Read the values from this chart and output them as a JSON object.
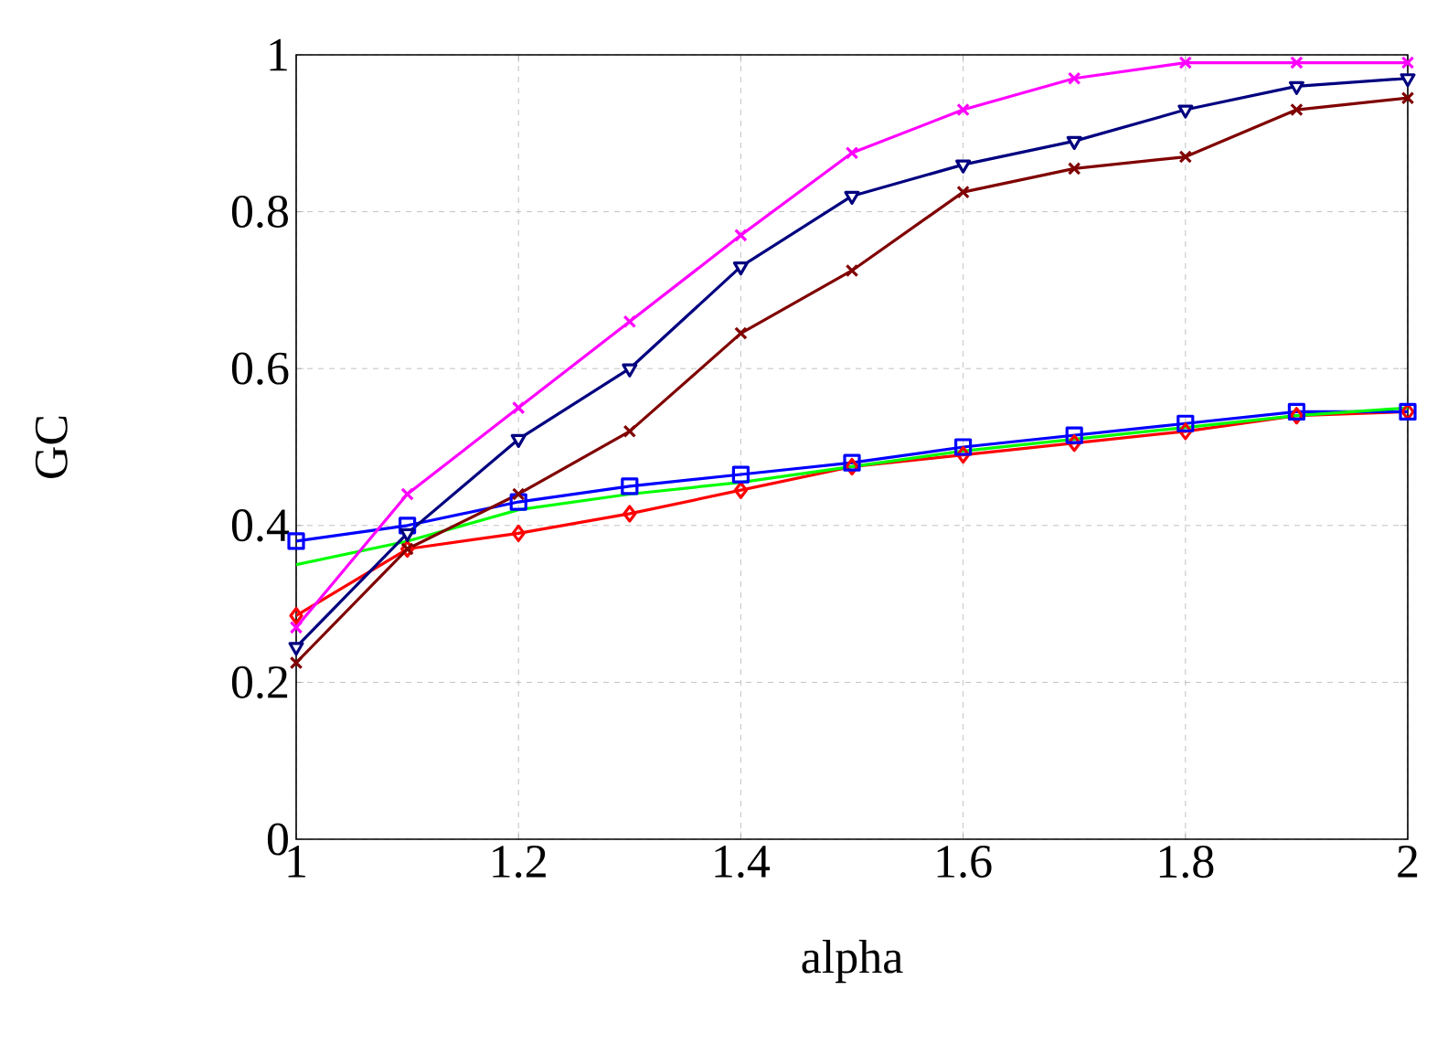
{
  "chart_data": {
    "type": "line",
    "xlabel": "alpha",
    "ylabel": "GC",
    "x": [
      1,
      1.1,
      1.2,
      1.3,
      1.4,
      1.5,
      1.6,
      1.7,
      1.8,
      1.9,
      2
    ],
    "series": [
      {
        "color": "#ff00ff",
        "marker": "cross",
        "values": [
          0.27,
          0.44,
          0.55,
          0.66,
          0.77,
          0.875,
          0.93,
          0.97,
          0.99,
          0.99,
          0.99
        ]
      },
      {
        "color": "#000080",
        "marker": "triangle",
        "values": [
          0.245,
          0.39,
          0.51,
          0.6,
          0.73,
          0.82,
          0.86,
          0.89,
          0.93,
          0.96,
          0.97
        ]
      },
      {
        "color": "#800000",
        "marker": "cross",
        "values": [
          0.225,
          0.37,
          0.44,
          0.52,
          0.645,
          0.725,
          0.825,
          0.855,
          0.87,
          0.93,
          0.945
        ]
      },
      {
        "color": "#00ff00",
        "marker": "none",
        "values": [
          0.35,
          0.38,
          0.42,
          0.44,
          0.455,
          0.475,
          0.495,
          0.51,
          0.525,
          0.54,
          0.55
        ]
      },
      {
        "color": "#0000ff",
        "marker": "square",
        "values": [
          0.38,
          0.4,
          0.43,
          0.45,
          0.465,
          0.48,
          0.5,
          0.515,
          0.53,
          0.545,
          0.545
        ]
      },
      {
        "color": "#ff0000",
        "marker": "diamond",
        "values": [
          0.285,
          0.37,
          0.39,
          0.415,
          0.445,
          0.475,
          0.49,
          0.505,
          0.52,
          0.54,
          0.545
        ]
      }
    ],
    "xlim": [
      1,
      2
    ],
    "ylim": [
      0,
      1
    ],
    "xticks": [
      1,
      1.2,
      1.4,
      1.6,
      1.8,
      2
    ],
    "yticks": [
      0,
      0.2,
      0.4,
      0.6,
      0.8,
      1
    ],
    "grid": true,
    "line_style": "solid"
  }
}
